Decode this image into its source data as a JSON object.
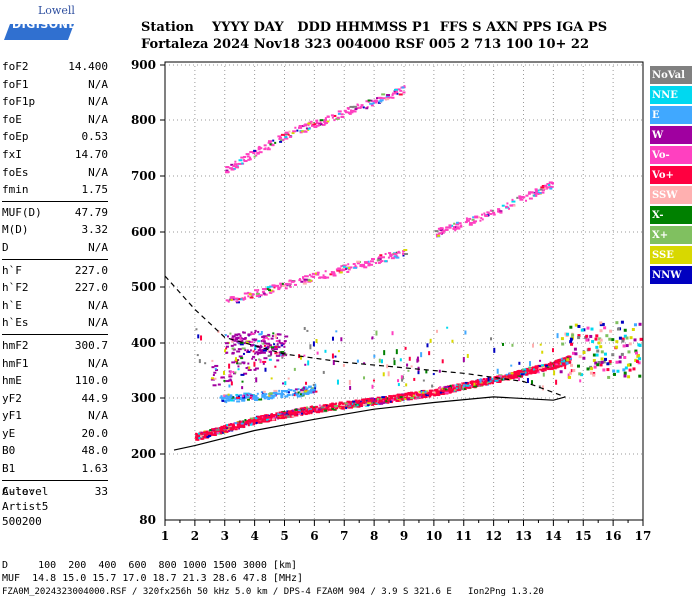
{
  "logo": {
    "brand": "Lowell",
    "product": "DIGISONDE"
  },
  "header": {
    "line1": "Station    YYYY DAY   DDD HHMMSS P1  FFS S AXN PPS IGA PS",
    "line2": "Fortaleza 2024 Nov18 323 004000 RSF 005 2 713 100 10+ 22"
  },
  "params": [
    {
      "name": "foF2",
      "value": "14.400"
    },
    {
      "name": "foF1",
      "value": "N/A"
    },
    {
      "name": "foF1p",
      "value": "N/A"
    },
    {
      "name": "foE",
      "value": "N/A"
    },
    {
      "name": "foEp",
      "value": "0.53"
    },
    {
      "name": "fxI",
      "value": "14.70"
    },
    {
      "name": "foEs",
      "value": "N/A"
    },
    {
      "name": "fmin",
      "value": "1.75"
    },
    {
      "name": "MUF(D)",
      "value": "47.79"
    },
    {
      "name": "M(D)",
      "value": "3.32"
    },
    {
      "name": "D",
      "value": "N/A"
    },
    {
      "name": "h`F",
      "value": "227.0"
    },
    {
      "name": "h`F2",
      "value": "227.0"
    },
    {
      "name": "h`E",
      "value": "N/A"
    },
    {
      "name": "h`Es",
      "value": "N/A"
    },
    {
      "name": "hmF2",
      "value": "300.7"
    },
    {
      "name": "hmF1",
      "value": "N/A"
    },
    {
      "name": "hmE",
      "value": "110.0"
    },
    {
      "name": "yF2",
      "value": "44.9"
    },
    {
      "name": "yF1",
      "value": "N/A"
    },
    {
      "name": "yE",
      "value": "20.0"
    },
    {
      "name": "B0",
      "value": "48.0"
    },
    {
      "name": "B1",
      "value": "1.63"
    },
    {
      "name": "C-level",
      "value": "33"
    }
  ],
  "auto": {
    "line1": "Auto:",
    "line2": "Artist5",
    "line3": "500200"
  },
  "legend": [
    {
      "label": "NoVal",
      "color": "#808080"
    },
    {
      "label": "NNE",
      "color": "#00d8f0"
    },
    {
      "label": "E",
      "color": "#40a8ff"
    },
    {
      "label": "W",
      "color": "#a000a0"
    },
    {
      "label": "Vo-",
      "color": "#ff40c0"
    },
    {
      "label": "Vo+",
      "color": "#ff0040"
    },
    {
      "label": "SSW",
      "color": "#ffb0b0"
    },
    {
      "label": "X-",
      "color": "#008000"
    },
    {
      "label": "X+",
      "color": "#80c060"
    },
    {
      "label": "SSE",
      "color": "#d8d800"
    },
    {
      "label": "NNW",
      "color": "#0000c0"
    }
  ],
  "chart_data": {
    "type": "scatter",
    "x_ticks": [
      "1",
      "2",
      "3",
      "4",
      "5",
      "6",
      "7",
      "8",
      "9",
      "10",
      "11",
      "12",
      "13",
      "14",
      "15",
      "16",
      "17"
    ],
    "y_ticks": [
      "200",
      "300",
      "400",
      "500",
      "600",
      "700",
      "800",
      "900"
    ],
    "y_bottom_label": "80",
    "xlim": [
      1,
      17
    ],
    "ylim": [
      80,
      900
    ],
    "series": [
      {
        "name": "Vo+",
        "values": [
          [
            2,
            232
          ],
          [
            4,
            262
          ],
          [
            6,
            282
          ],
          [
            8,
            296
          ],
          [
            10,
            312
          ],
          [
            12,
            335
          ],
          [
            14,
            362
          ],
          [
            14.5,
            372
          ]
        ]
      },
      {
        "name": "E",
        "values": [
          [
            2.8,
            300
          ],
          [
            4,
            305
          ],
          [
            5.5,
            312
          ],
          [
            6,
            320
          ]
        ]
      },
      {
        "name": "W",
        "values": [
          [
            3,
            400
          ],
          [
            4,
            405
          ],
          [
            5,
            395
          ],
          [
            2.5,
            340
          ]
        ]
      },
      {
        "name": "Vo-",
        "values": [
          [
            3,
            475
          ],
          [
            5,
            505
          ],
          [
            7,
            535
          ],
          [
            9,
            565
          ]
        ]
      },
      {
        "name": "Vo-",
        "values": [
          [
            3,
            712
          ],
          [
            5,
            775
          ],
          [
            7,
            815
          ],
          [
            9,
            858
          ]
        ]
      },
      {
        "name": "Vo-",
        "values": [
          [
            10,
            598
          ],
          [
            12,
            638
          ],
          [
            14,
            688
          ]
        ]
      }
    ],
    "lines": [
      {
        "name": "profile-solid",
        "values": [
          [
            1.3,
            207
          ],
          [
            2,
            215
          ],
          [
            4,
            242
          ],
          [
            6,
            262
          ],
          [
            8,
            280
          ],
          [
            10,
            292
          ],
          [
            12,
            302
          ],
          [
            14,
            296
          ],
          [
            14.4,
            302
          ]
        ]
      },
      {
        "name": "profile-dashed",
        "values": [
          [
            1,
            520
          ],
          [
            2,
            460
          ],
          [
            3,
            410
          ],
          [
            5,
            380
          ],
          [
            7,
            365
          ],
          [
            9,
            355
          ],
          [
            11,
            345
          ],
          [
            13,
            330
          ],
          [
            14.4,
            302
          ]
        ]
      }
    ]
  },
  "footer": {
    "line1": "D     100  200  400  600  800 1000 1500 3000 [km]",
    "line2": "MUF  14.8 15.0 15.7 17.0 18.7 21.3 28.6 47.8 [MHz]",
    "line3": "FZA0M_2024323004000.RSF / 320fx256h 50 kHz 5.0 km / DPS-4 FZA0M 904 / 3.9 S 321.6 E   Ion2Png 1.3.20"
  }
}
